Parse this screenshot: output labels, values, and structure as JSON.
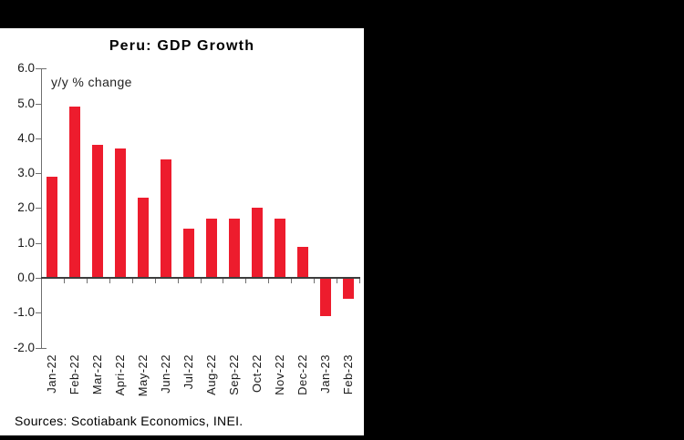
{
  "frame": {
    "background_color": "#000000",
    "panel_color": "#ffffff"
  },
  "chart_data": {
    "type": "bar",
    "title": "Peru: GDP Growth",
    "annotation": "y/y % change",
    "source": "Sources: Scotiabank Economics, INEI.",
    "categories": [
      "Jan-22",
      "Feb-22",
      "Mar-22",
      "Apri-22",
      "May-22",
      "Jun-22",
      "Jul-22",
      "Aug-22",
      "Sep-22",
      "Oct-22",
      "Nov-22",
      "Dec-22",
      "Jan-23",
      "Feb-23"
    ],
    "values": [
      2.9,
      4.9,
      3.8,
      3.7,
      2.3,
      3.4,
      1.4,
      1.7,
      1.7,
      2.0,
      1.7,
      0.9,
      -1.1,
      -0.6
    ],
    "bar_color": "#ED1C2D",
    "ylim": [
      -2.0,
      6.0
    ],
    "ytick_step": 1.0,
    "ytick_labels": [
      "6.0",
      "5.0",
      "4.0",
      "3.0",
      "2.0",
      "1.0",
      "0.0",
      "-1.0",
      "-2.0"
    ],
    "xlabel": "",
    "ylabel": "",
    "grid": false,
    "legend": "none",
    "axis_color": "#6f6f6f",
    "zero_line_color": "#3d3d3d"
  }
}
